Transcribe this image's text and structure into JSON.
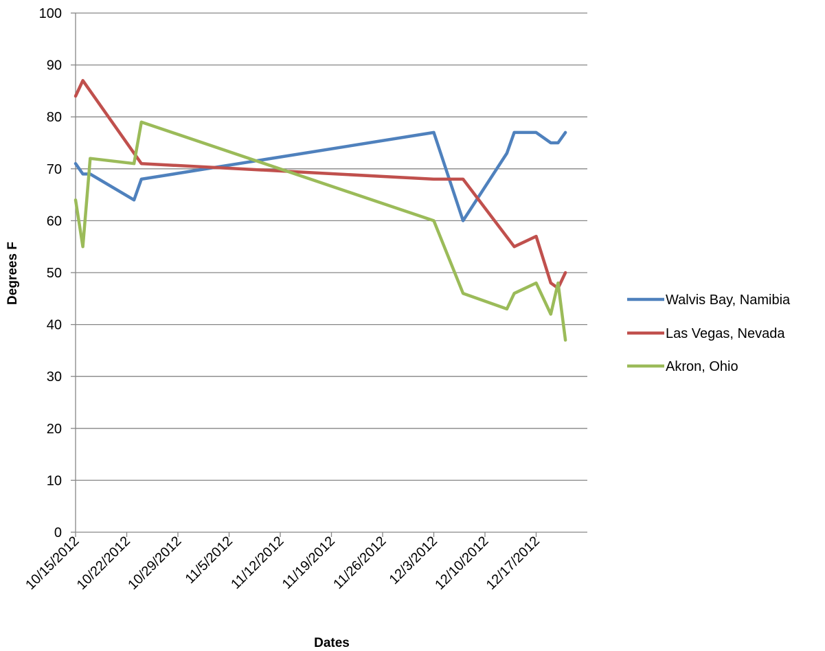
{
  "chart_data": {
    "type": "line",
    "title": "",
    "xlabel": "Dates",
    "ylabel": "Degrees F",
    "ylim": [
      0,
      100
    ],
    "yticks": [
      0,
      10,
      20,
      30,
      40,
      50,
      60,
      70,
      80,
      90,
      100
    ],
    "xlim": [
      "2012-10-15",
      "2012-12-24"
    ],
    "xticks": [
      {
        "date": "2012-10-15",
        "label": "10/15/2012"
      },
      {
        "date": "2012-10-22",
        "label": "10/22/2012"
      },
      {
        "date": "2012-10-29",
        "label": "10/29/2012"
      },
      {
        "date": "2012-11-05",
        "label": "11/5/2012"
      },
      {
        "date": "2012-11-12",
        "label": "11/12/2012"
      },
      {
        "date": "2012-11-19",
        "label": "11/19/2012"
      },
      {
        "date": "2012-11-26",
        "label": "11/26/2012"
      },
      {
        "date": "2012-12-03",
        "label": "12/3/2012"
      },
      {
        "date": "2012-12-10",
        "label": "12/10/2012"
      },
      {
        "date": "2012-12-17",
        "label": "12/17/2012"
      }
    ],
    "grid": "horizontal",
    "legend_position": "right",
    "series": [
      {
        "name": "Walvis Bay, Namibia",
        "color": "#4F81BD",
        "points": [
          [
            "2012-10-15",
            71
          ],
          [
            "2012-10-16",
            69
          ],
          [
            "2012-10-17",
            69
          ],
          [
            "2012-10-23",
            64
          ],
          [
            "2012-10-24",
            68
          ],
          [
            "2012-12-03",
            77
          ],
          [
            "2012-12-07",
            60
          ],
          [
            "2012-12-13",
            73
          ],
          [
            "2012-12-14",
            77
          ],
          [
            "2012-12-17",
            77
          ],
          [
            "2012-12-19",
            75
          ],
          [
            "2012-12-20",
            75
          ],
          [
            "2012-12-21",
            77
          ]
        ]
      },
      {
        "name": "Las Vegas, Nevada",
        "color": "#C0504D",
        "points": [
          [
            "2012-10-15",
            84
          ],
          [
            "2012-10-16",
            87
          ],
          [
            "2012-10-23",
            73
          ],
          [
            "2012-10-24",
            71
          ],
          [
            "2012-12-03",
            68
          ],
          [
            "2012-12-07",
            68
          ],
          [
            "2012-12-14",
            55
          ],
          [
            "2012-12-17",
            57
          ],
          [
            "2012-12-19",
            48
          ],
          [
            "2012-12-20",
            47
          ],
          [
            "2012-12-21",
            50
          ]
        ]
      },
      {
        "name": "Akron, Ohio",
        "color": "#9BBB59",
        "points": [
          [
            "2012-10-15",
            64
          ],
          [
            "2012-10-16",
            55
          ],
          [
            "2012-10-17",
            72
          ],
          [
            "2012-10-23",
            71
          ],
          [
            "2012-10-24",
            79
          ],
          [
            "2012-12-03",
            60
          ],
          [
            "2012-12-07",
            46
          ],
          [
            "2012-12-13",
            43
          ],
          [
            "2012-12-14",
            46
          ],
          [
            "2012-12-17",
            48
          ],
          [
            "2012-12-19",
            42
          ],
          [
            "2012-12-20",
            48
          ],
          [
            "2012-12-21",
            37
          ]
        ]
      }
    ]
  }
}
